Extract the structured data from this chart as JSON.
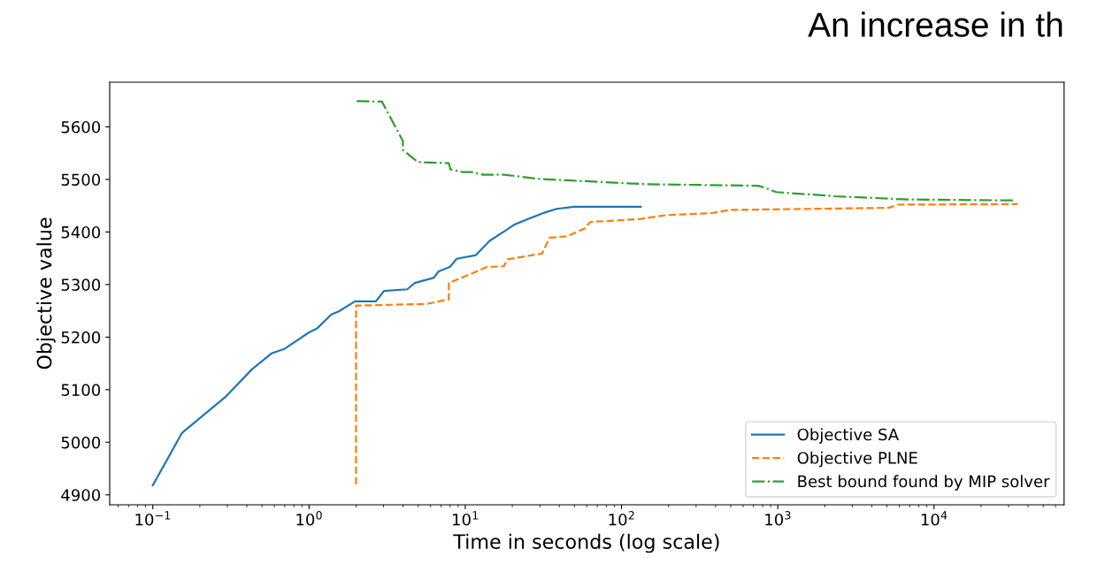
{
  "chart_data": {
    "type": "line",
    "title": "An increase in th",
    "xlabel": "Time in seconds (log scale)",
    "ylabel": "Objective value",
    "log": "x",
    "grid": false,
    "legend": "lower right",
    "xlim": [
      0.053,
      68000
    ],
    "ylim": [
      4881,
      5685
    ],
    "xticks": [
      {
        "value": 0.1,
        "label": "10$^{−1}$"
      },
      {
        "value": 1,
        "label": "10$^{0}$"
      },
      {
        "value": 10,
        "label": "10$^{1}$"
      },
      {
        "value": 100,
        "label": "10$^{2}$"
      },
      {
        "value": 1000,
        "label": "10$^{3}$"
      },
      {
        "value": 10000,
        "label": "10$^{4}$"
      }
    ],
    "yticks": [
      4900,
      5000,
      5100,
      5200,
      5300,
      5400,
      5500,
      5600
    ],
    "series": [
      {
        "name": "Objective SA",
        "color": "#1f77b4",
        "line_style": "solid",
        "x": [
          0.1,
          0.154,
          0.291,
          0.432,
          0.575,
          0.7,
          1.0,
          1.12,
          1.39,
          1.55,
          1.97,
          2.68,
          3.02,
          4.25,
          4.75,
          6.3,
          6.75,
          8.0,
          8.8,
          11.7,
          14.3,
          17.7,
          20.6,
          25.4,
          33,
          38.5,
          50,
          133
        ],
        "values": [
          4918,
          5018,
          5086,
          5139,
          5169,
          5178,
          5209,
          5216,
          5243,
          5249,
          5268,
          5268,
          5288,
          5291,
          5303,
          5313,
          5325,
          5334,
          5349,
          5356,
          5383,
          5401,
          5414,
          5425,
          5438,
          5444,
          5448,
          5448
        ]
      },
      {
        "name": "Objective PLNE",
        "color": "#ff7f0e",
        "line_style": "dashed",
        "x": [
          2.0,
          2.0,
          5.66,
          7.85,
          7.85,
          11,
          13.6,
          17.7,
          18.6,
          31,
          34.7,
          45,
          58.5,
          63,
          93,
          134,
          193,
          380,
          494,
          5130,
          5870,
          34300
        ],
        "values": [
          4920,
          5260,
          5263,
          5272,
          5303,
          5321,
          5333,
          5335,
          5348,
          5359,
          5389,
          5392,
          5407,
          5419,
          5422,
          5425,
          5432,
          5436,
          5442,
          5446,
          5452,
          5453
        ]
      },
      {
        "name": "Best bound found by MIP solver",
        "color": "#2ca02c",
        "line_style": "dashdot",
        "x": [
          2.02,
          2.93,
          3.99,
          3.99,
          4.97,
          7.85,
          8.04,
          9.6,
          11,
          13,
          17.7,
          29.7,
          47,
          142,
          750,
          832,
          973,
          2340,
          6670,
          33400
        ],
        "values": [
          5649,
          5648,
          5573,
          5556,
          5533,
          5531,
          5519,
          5514,
          5514,
          5509,
          5509,
          5501,
          5498,
          5491,
          5488,
          5484,
          5476,
          5468,
          5462,
          5460
        ]
      }
    ]
  }
}
